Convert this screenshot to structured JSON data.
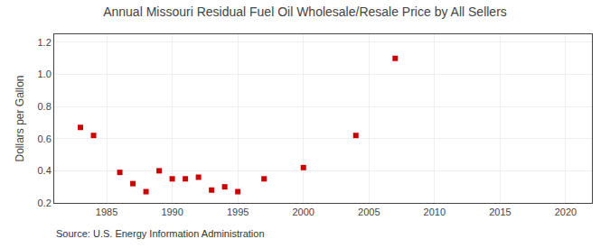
{
  "chart_data": {
    "type": "scatter",
    "title": "Annual Missouri Residual Fuel Oil Wholesale/Resale Price by All Sellers",
    "ylabel": "Dollars per Gallon",
    "annotations": [
      "Source: U.S. Energy Information Administration"
    ],
    "x": [
      1983,
      1984,
      1986,
      1987,
      1988,
      1989,
      1990,
      1991,
      1992,
      1993,
      1994,
      1995,
      1997,
      2000,
      2004,
      2007
    ],
    "values": [
      0.67,
      0.62,
      0.39,
      0.32,
      0.27,
      0.4,
      0.35,
      0.35,
      0.36,
      0.28,
      0.3,
      0.27,
      0.35,
      0.42,
      0.62,
      1.1
    ],
    "color": "#cc0000",
    "marker": "square",
    "xlim": [
      1981,
      2022
    ],
    "ylim": [
      0.2,
      1.25
    ],
    "xticks": [
      1985,
      1990,
      1995,
      2000,
      2005,
      2010,
      2015,
      2020
    ],
    "yticks": [
      0.2,
      0.4,
      0.6,
      0.8,
      {
        "value": 1,
        "label": "1.0"
      },
      1.2
    ],
    "grid": true
  }
}
